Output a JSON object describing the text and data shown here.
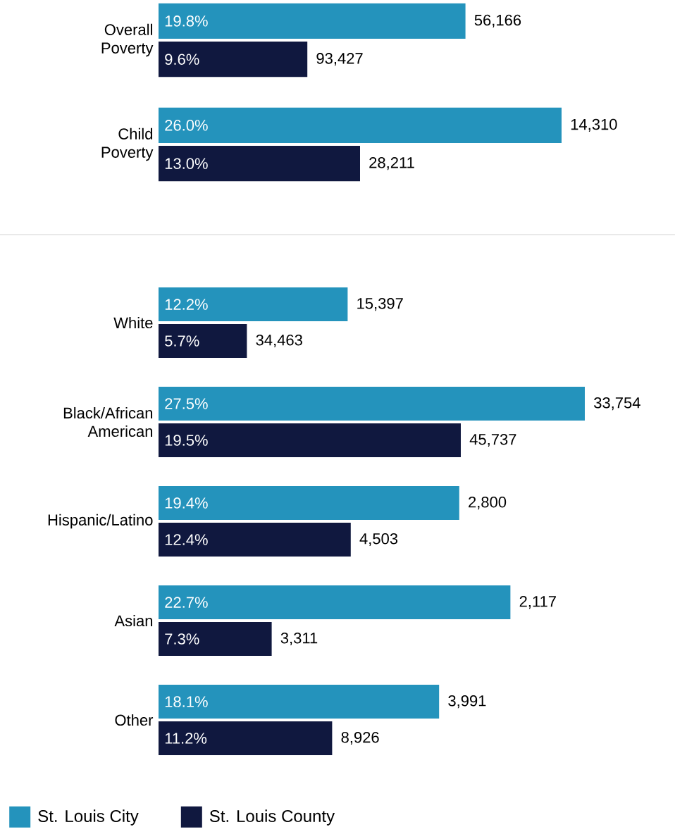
{
  "chart_data": [
    {
      "type": "bar",
      "orientation": "horizontal",
      "categories": [
        "Overall Poverty",
        "Child Poverty"
      ],
      "legend": false,
      "series": [
        {
          "color": "#2493bc",
          "values": [
            19.8,
            26.0
          ],
          "value_labels": [
            "19.8%",
            "26.0%"
          ]
        },
        {
          "color": "#10183f",
          "values": [
            9.6,
            13.0
          ],
          "value_labels": [
            "9.6%",
            "13.0%"
          ]
        }
      ],
      "annotations": [
        {
          "text": "56,166",
          "x": 19.8,
          "y": "Overall Poverty"
        },
        {
          "text": "14,310",
          "x": 26.0,
          "y": "Child Poverty"
        },
        {
          "text": "93,427",
          "x": 9.6,
          "y": "Overall Poverty"
        },
        {
          "text": "28,211",
          "x": 13.0,
          "y": "Child Poverty"
        }
      ]
    },
    {
      "type": "bar",
      "orientation": "horizontal",
      "categories": [
        "White",
        "Black/African American",
        "Hispanic/Latino",
        "Asian",
        "Other"
      ],
      "legend": "bottom",
      "series": [
        {
          "name": "St. Louis City",
          "color": "#2493bc",
          "values": [
            12.2,
            27.5,
            19.4,
            22.7,
            18.1
          ],
          "value_labels": [
            "12.2%",
            "27.5%",
            "19.4%",
            "22.7%",
            "18.1%"
          ]
        },
        {
          "name": "St. Louis County",
          "color": "#10183f",
          "values": [
            5.7,
            19.5,
            12.4,
            7.3,
            11.2
          ],
          "value_labels": [
            "5.7%",
            "19.5%",
            "12.4%",
            "7.3%",
            "11.2%"
          ]
        }
      ],
      "annotations": [
        {
          "text": "15,397",
          "x": 12.2,
          "y": "White"
        },
        {
          "text": "33,754",
          "x": 27.5,
          "y": "Black/African American"
        },
        {
          "text": "2,800",
          "x": 19.4,
          "y": "Hispanic/Latino"
        },
        {
          "text": "2,117",
          "x": 22.7,
          "y": "Asian"
        },
        {
          "text": "3,991",
          "x": 18.1,
          "y": "Other"
        },
        {
          "text": "34,463",
          "x": 5.7,
          "y": "White"
        },
        {
          "text": "45,737",
          "x": 19.5,
          "y": "Black/African American"
        },
        {
          "text": "4,503",
          "x": 12.4,
          "y": "Hispanic/Latino"
        },
        {
          "text": "3,311",
          "x": 7.3,
          "y": "Asian"
        },
        {
          "text": "8,926",
          "x": 11.2,
          "y": "Other"
        }
      ]
    }
  ]
}
